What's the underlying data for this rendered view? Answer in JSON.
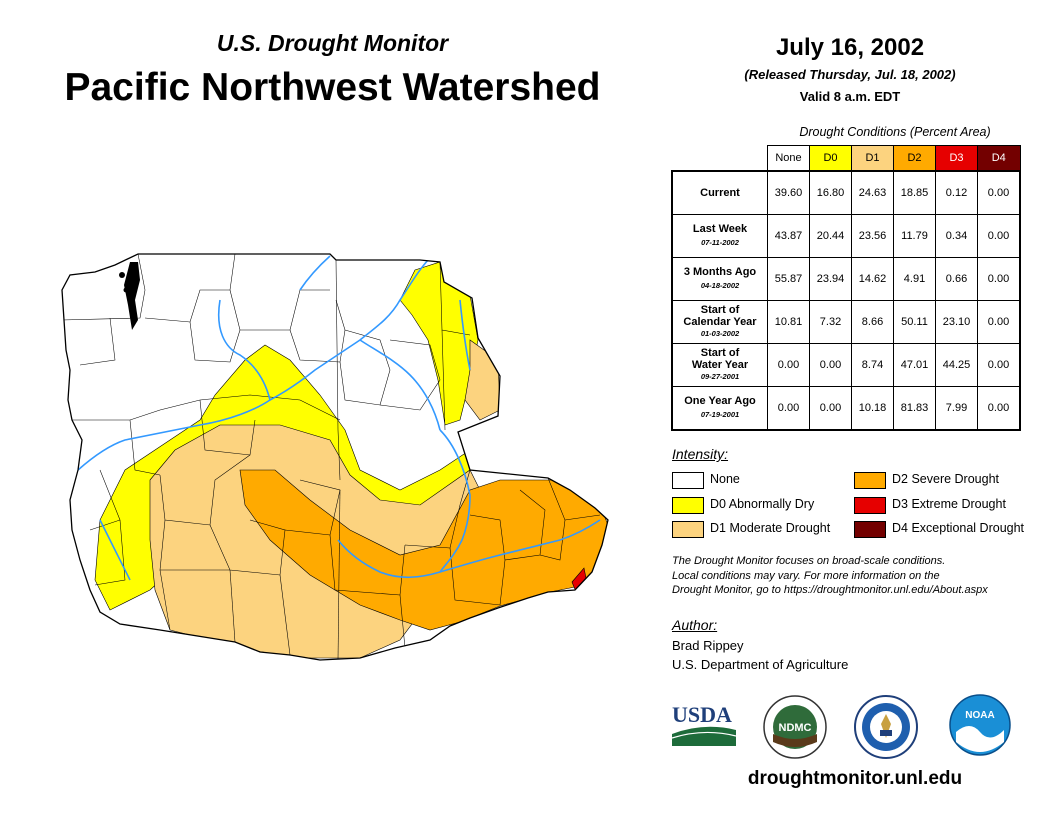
{
  "header": {
    "subtitle": "U.S. Drought Monitor",
    "title": "Pacific Northwest Watershed",
    "date": "July 16, 2002",
    "released": "(Released Thursday, Jul. 18, 2002)",
    "valid": "Valid 8 a.m. EDT"
  },
  "table": {
    "title": "Drought Conditions (Percent Area)",
    "columns": [
      {
        "label": "None",
        "color": "#ffffff",
        "text_color": "#000000"
      },
      {
        "label": "D0",
        "color": "#ffff00",
        "text_color": "#000000"
      },
      {
        "label": "D1",
        "color": "#fcd37f",
        "text_color": "#000000"
      },
      {
        "label": "D2",
        "color": "#ffaa00",
        "text_color": "#000000"
      },
      {
        "label": "D3",
        "color": "#e60000",
        "text_color": "#ffffff"
      },
      {
        "label": "D4",
        "color": "#730000",
        "text_color": "#ffffff"
      }
    ],
    "rows": [
      {
        "label": "Current",
        "date": "",
        "values": [
          "39.60",
          "16.80",
          "24.63",
          "18.85",
          "0.12",
          "0.00"
        ]
      },
      {
        "label": "Last Week",
        "date": "07-11-2002",
        "values": [
          "43.87",
          "20.44",
          "23.56",
          "11.79",
          "0.34",
          "0.00"
        ]
      },
      {
        "label": "3 Months Ago",
        "date": "04-18-2002",
        "values": [
          "55.87",
          "23.94",
          "14.62",
          "4.91",
          "0.66",
          "0.00"
        ]
      },
      {
        "label": "Start of Calendar Year",
        "date": "01-03-2002",
        "values": [
          "10.81",
          "7.32",
          "8.66",
          "50.11",
          "23.10",
          "0.00"
        ]
      },
      {
        "label": "Start of Water Year",
        "date": "09-27-2001",
        "values": [
          "0.00",
          "0.00",
          "8.74",
          "47.01",
          "44.25",
          "0.00"
        ]
      },
      {
        "label": "One Year Ago",
        "date": "07-19-2001",
        "values": [
          "0.00",
          "0.00",
          "10.18",
          "81.83",
          "7.99",
          "0.00"
        ]
      }
    ]
  },
  "legend": {
    "title": "Intensity:",
    "items": [
      {
        "label": "None",
        "color": "#ffffff"
      },
      {
        "label": "D0 Abnormally Dry",
        "color": "#ffff00"
      },
      {
        "label": "D1 Moderate Drought",
        "color": "#fcd37f"
      },
      {
        "label": "D2 Severe Drought",
        "color": "#ffaa00"
      },
      {
        "label": "D3 Extreme Drought",
        "color": "#e60000"
      },
      {
        "label": "D4 Exceptional Drought",
        "color": "#730000"
      }
    ]
  },
  "note": {
    "line1": "The Drought Monitor focuses on broad-scale conditions.",
    "line2": "Local conditions may vary. For more information on the",
    "line3": "Drought Monitor, go to https://droughtmonitor.unl.edu/About.aspx"
  },
  "author": {
    "label": "Author:",
    "name": "Brad Rippey",
    "org": "U.S. Department of Agriculture"
  },
  "logos": {
    "usda": "USDA",
    "ndmc": "NDMC",
    "noaa": "NOAA"
  },
  "footer": {
    "url": "droughtmonitor.unl.edu"
  },
  "map": {
    "colors": {
      "none": "#ffffff",
      "d0": "#ffff00",
      "d1": "#fcd37f",
      "d2": "#ffaa00",
      "d3": "#e60000",
      "river": "#3399ff",
      "border": "#000000"
    }
  }
}
